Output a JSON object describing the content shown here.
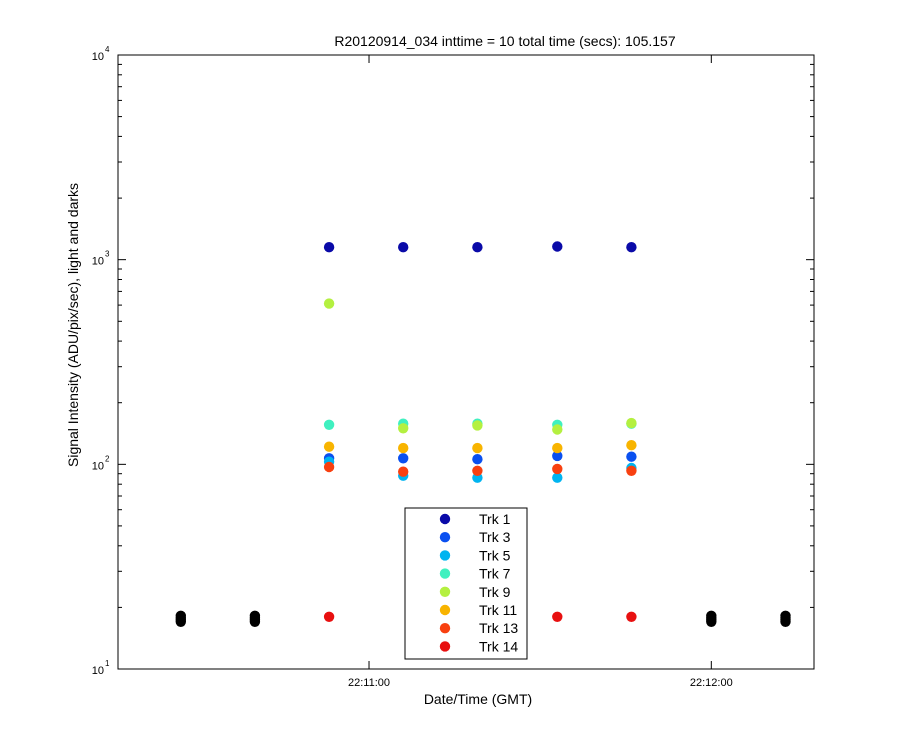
{
  "chart_data": {
    "type": "scatter",
    "title": "R20120914_034 inttime = 10 total time (secs): 105.157",
    "xlabel": "Date/Time (GMT)",
    "ylabel": "Signal Intensity (ADU/pix/sec), light and darks",
    "y_scale": "log",
    "ylim": [
      10,
      10000
    ],
    "xlim": [
      "22:10:16",
      "22:12:18"
    ],
    "x_tick_labels": [
      {
        "time": "22:11:00",
        "label": "22:11:00"
      },
      {
        "time": "22:12:00",
        "label": "22:12:00"
      }
    ],
    "y_tick_labels": [
      {
        "value": 10,
        "base": "10",
        "exp": "1"
      },
      {
        "value": 100,
        "base": "10",
        "exp": "2"
      },
      {
        "value": 1000,
        "base": "10",
        "exp": "3"
      },
      {
        "value": 10000,
        "base": "10",
        "exp": "4"
      }
    ],
    "grid": false,
    "legend_position": "bottom-center",
    "series": [
      {
        "name": "Trk 1",
        "color": "#0a0aa8",
        "points": [
          [
            "22:10:53",
            1150
          ],
          [
            "22:11:06",
            1150
          ],
          [
            "22:11:19",
            1150
          ],
          [
            "22:11:33",
            1160
          ],
          [
            "22:11:46",
            1150
          ]
        ]
      },
      {
        "name": "Trk 3",
        "color": "#0a50f0",
        "points": [
          [
            "22:10:53",
            107
          ],
          [
            "22:11:06",
            107
          ],
          [
            "22:11:19",
            106
          ],
          [
            "22:11:33",
            110
          ],
          [
            "22:11:46",
            109
          ]
        ]
      },
      {
        "name": "Trk 5",
        "color": "#00b4f0",
        "points": [
          [
            "22:10:53",
            103
          ],
          [
            "22:11:06",
            88
          ],
          [
            "22:11:19",
            86
          ],
          [
            "22:11:33",
            86
          ],
          [
            "22:11:46",
            96
          ]
        ]
      },
      {
        "name": "Trk 7",
        "color": "#40f0c0",
        "points": [
          [
            "22:10:53",
            156
          ],
          [
            "22:11:06",
            158
          ],
          [
            "22:11:19",
            158
          ],
          [
            "22:11:33",
            156
          ],
          [
            "22:11:46",
            158
          ]
        ]
      },
      {
        "name": "Trk 9",
        "color": "#b4f040",
        "points": [
          [
            "22:10:53",
            610
          ],
          [
            "22:11:06",
            150
          ],
          [
            "22:11:19",
            155
          ],
          [
            "22:11:33",
            148
          ],
          [
            "22:11:46",
            159
          ]
        ]
      },
      {
        "name": "Trk 11",
        "color": "#f8b400",
        "points": [
          [
            "22:10:53",
            122
          ],
          [
            "22:11:06",
            120
          ],
          [
            "22:11:19",
            120
          ],
          [
            "22:11:33",
            120
          ],
          [
            "22:11:46",
            124
          ]
        ]
      },
      {
        "name": "Trk 13",
        "color": "#f84010",
        "points": [
          [
            "22:10:53",
            97
          ],
          [
            "22:11:06",
            92
          ],
          [
            "22:11:19",
            93
          ],
          [
            "22:11:33",
            95
          ],
          [
            "22:11:46",
            93
          ]
        ]
      },
      {
        "name": "Trk 14",
        "color": "#e81010",
        "points": [
          [
            "22:10:53",
            18
          ],
          [
            "22:11:33",
            18
          ],
          [
            "22:11:46",
            18
          ]
        ]
      }
    ],
    "dark_points": {
      "color": "#000000",
      "times": [
        "22:10:27",
        "22:10:40",
        "22:12:00",
        "22:12:13"
      ],
      "values": [
        17,
        17.4,
        17.8,
        18.2
      ]
    }
  }
}
